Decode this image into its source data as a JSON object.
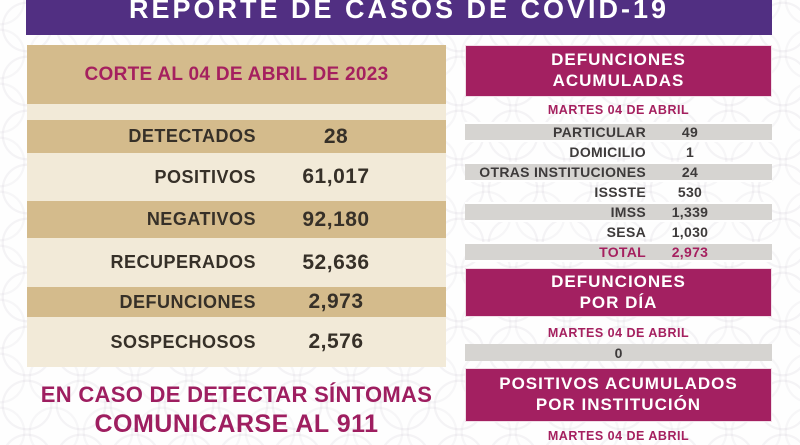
{
  "header": {
    "title": "REPORTE DE CASOS DE COVID-19"
  },
  "left_panel": {
    "banner": "CORTE AL 04 DE ABRIL DE 2023",
    "rows": [
      {
        "label": "DETECTADOS",
        "value": "28"
      },
      {
        "label": "POSITIVOS",
        "value": "61,017"
      },
      {
        "label": "NEGATIVOS",
        "value": "92,180"
      },
      {
        "label": "RECUPERADOS",
        "value": "52,636"
      },
      {
        "label": "DEFUNCIONES",
        "value": "2,973"
      },
      {
        "label": "SOSPECHOSOS",
        "value": "2,576"
      }
    ],
    "footer_line1": "EN CASO DE DETECTAR SÍNTOMAS",
    "footer_line2": "COMUNICARSE AL 911"
  },
  "right_panel": {
    "deaths_accumulated": {
      "title_line1": "DEFUNCIONES",
      "title_line2": "ACUMULADAS",
      "date": "MARTES 04 DE ABRIL",
      "rows": [
        {
          "label": "PARTICULAR",
          "value": "49"
        },
        {
          "label": "DOMICILIO",
          "value": "1"
        },
        {
          "label": "OTRAS INSTITUCIONES",
          "value": "24"
        },
        {
          "label": "ISSSTE",
          "value": "530"
        },
        {
          "label": "IMSS",
          "value": "1,339"
        },
        {
          "label": "SESA",
          "value": "1,030"
        },
        {
          "label": "TOTAL",
          "value": "2,973"
        }
      ]
    },
    "deaths_per_day": {
      "title_line1": "DEFUNCIONES",
      "title_line2": "POR DÍA",
      "date": "MARTES 04  DE ABRIL",
      "value": "0"
    },
    "positives_by_institution": {
      "title_line1": "POSITIVOS ACUMULADOS",
      "title_line2": "POR INSTITUCIÓN",
      "date": "MARTES 04 DE ABRIL"
    }
  },
  "colors": {
    "purple_header": "#512f82",
    "magenta_banner": "#a32061",
    "magenta_text": "#a5205f",
    "tan": "#d4bb8c",
    "cream": "#f2ead8",
    "gray_row": "#d6d4d1",
    "dark_text": "#363028"
  }
}
